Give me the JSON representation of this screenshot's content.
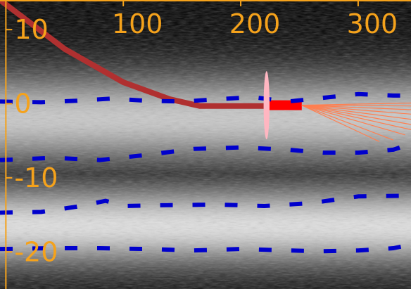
{
  "colors": {
    "background": "#000000",
    "axis": "#f5a21b",
    "dashed_lines": "#0000cc",
    "curve": "#b03030",
    "beam": "#ff0000",
    "lens": "#ffb6c1",
    "rays": "#ff7f50"
  },
  "chart_data": {
    "type": "line",
    "title": "",
    "xlabel": "",
    "ylabel": "",
    "xlim": [
      -5,
      345
    ],
    "ylim": [
      -25,
      14
    ],
    "x_ticks": [
      100,
      200,
      300
    ],
    "x_tick_labels": [
      "100",
      "200",
      "300"
    ],
    "y_ticks": [
      10,
      0,
      -10,
      -20
    ],
    "y_tick_labels": [
      "10",
      "0",
      "-10",
      "-20"
    ],
    "grid": false,
    "background_bands": [
      {
        "center": -2,
        "half_width": 5,
        "peak": 0.85
      },
      {
        "center": -16.5,
        "half_width": 4.5,
        "peak": 0.95
      }
    ],
    "series": [
      {
        "style": "solid-thick",
        "color_key": "curve",
        "x": [
          -5,
          50,
          100,
          140,
          165,
          230
        ],
        "y": [
          14,
          7.4,
          2.9,
          0.6,
          -0.3,
          -0.3
        ]
      },
      {
        "style": "solid-bar",
        "color_key": "beam",
        "x": [
          220,
          252
        ],
        "y": [
          -0.2,
          -0.2
        ]
      },
      {
        "style": "dashed",
        "color_key": "dashed_lines",
        "x": [
          -5,
          30,
          60,
          90,
          120,
          150,
          180,
          210,
          240,
          270,
          300,
          330,
          345
        ],
        "y": [
          0.3,
          0.2,
          0.4,
          0.7,
          0.4,
          0.3,
          0.6,
          0.9,
          0.3,
          0.8,
          1.3,
          1.1,
          1.1
        ]
      },
      {
        "style": "dashed",
        "color_key": "dashed_lines",
        "x": [
          -5,
          40,
          80,
          120,
          160,
          200,
          240,
          270,
          300,
          330,
          345
        ],
        "y": [
          -7.6,
          -7.3,
          -7.6,
          -6.9,
          -6.1,
          -5.9,
          -6.2,
          -6.6,
          -6.6,
          -6.2,
          -5.4
        ]
      },
      {
        "style": "dashed",
        "color_key": "dashed_lines",
        "x": [
          -5,
          30,
          60,
          85,
          100,
          130,
          180,
          220,
          260,
          300,
          345
        ],
        "y": [
          -14.7,
          -14.6,
          -13.9,
          -13.1,
          -13.8,
          -13.7,
          -13.6,
          -13.8,
          -13.4,
          -12.5,
          -12.4
        ]
      },
      {
        "style": "dashed",
        "color_key": "dashed_lines",
        "x": [
          -5,
          40,
          80,
          120,
          160,
          200,
          240,
          270,
          300,
          330,
          345
        ],
        "y": [
          -19.6,
          -19.5,
          -19.5,
          -19.6,
          -19.8,
          -19.6,
          -19.8,
          -19.9,
          -19.8,
          -19.5,
          -19.0
        ]
      }
    ],
    "lens": {
      "x": 222,
      "y": -0.2,
      "half_height": 4.6,
      "half_width": 2.5
    },
    "ray_fan": {
      "origin": [
        252,
        -0.2
      ],
      "ends": [
        [
          345,
          0.1
        ],
        [
          345,
          -0.3
        ],
        [
          345,
          -0.8
        ],
        [
          345,
          -1.4
        ],
        [
          345,
          -2.1
        ],
        [
          345,
          -2.8
        ],
        [
          345,
          -3.5
        ],
        [
          340,
          -4.2
        ],
        [
          330,
          -4.9
        ],
        [
          318,
          -5.1
        ]
      ]
    }
  }
}
